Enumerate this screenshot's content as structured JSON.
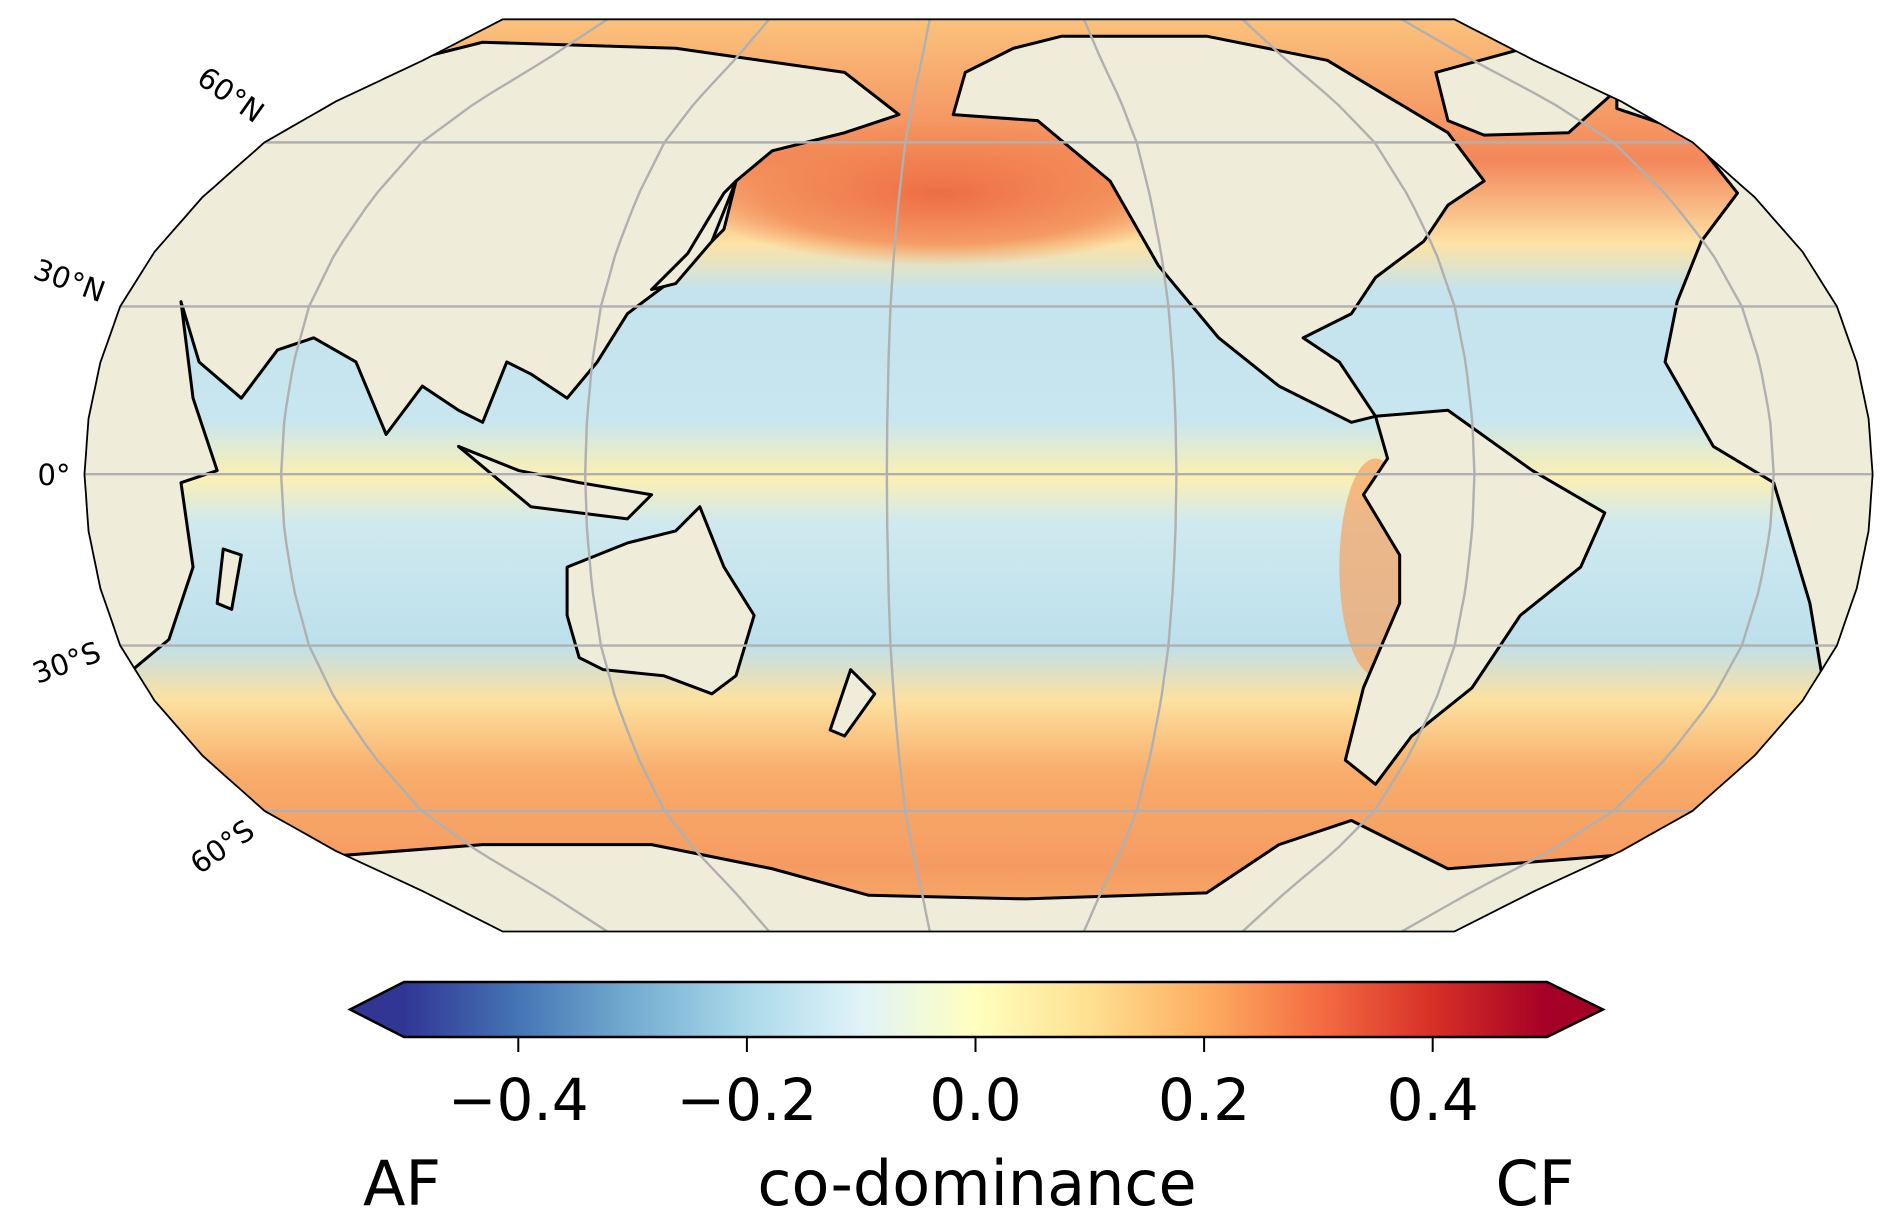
{
  "chart_data": {
    "type": "heatmap",
    "projection": "Robinson (Pacific-centred)",
    "title": "",
    "latitude_labels": [
      "60°N",
      "30°N",
      "0°",
      "30°S",
      "60°S"
    ],
    "latitudes": [
      60,
      30,
      0,
      -30,
      -60
    ],
    "colorbar": {
      "colormap": "RdYlBu_r",
      "range": [
        -0.5,
        0.5
      ],
      "extend": "both",
      "ticks": [
        -0.4,
        -0.2,
        0.0,
        0.2,
        0.4
      ],
      "tick_labels": [
        "−0.4",
        "−0.2",
        "0.0",
        "0.2",
        "0.4"
      ],
      "label_left": "AF",
      "label_center": "co-dominance",
      "label_right": "CF",
      "colors": [
        "#313695",
        "#4575b4",
        "#74add1",
        "#abd9e9",
        "#e0f3f8",
        "#ffffbf",
        "#fee090",
        "#fdae61",
        "#f46d43",
        "#d73027",
        "#a50026"
      ]
    },
    "regions": {
      "north_pacific": 0.3,
      "tropical_oceans": -0.15,
      "equatorial_band": 0.05,
      "southern_ocean": 0.22
    }
  },
  "colors": {
    "land": "#efedd9",
    "grid": "#b0b0b0",
    "coast": "#000000"
  }
}
